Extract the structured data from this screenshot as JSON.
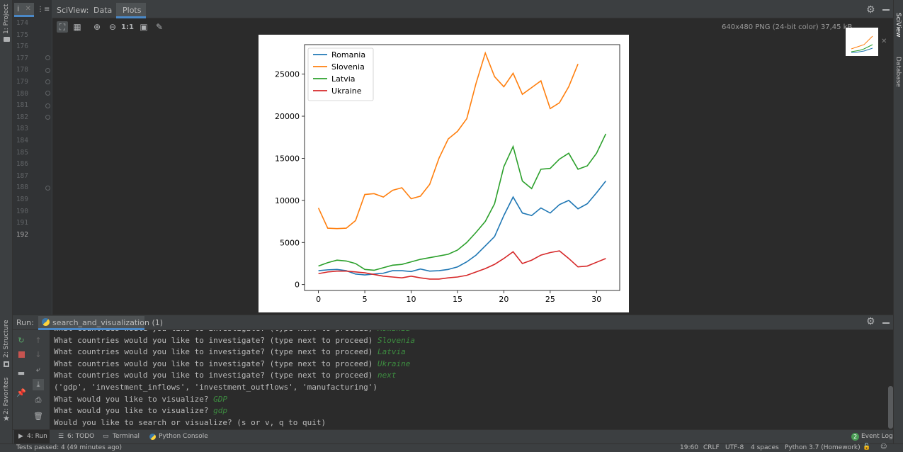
{
  "left_strip": {
    "project_label": "1: Project",
    "structure_label": "2: Structure",
    "favorites_label": "2: Favorites"
  },
  "right_strip": {
    "sciview_label": "SciView",
    "database_label": "Database"
  },
  "editor_tab": {
    "label": "i"
  },
  "sciview_tabs": {
    "title": "SciView:",
    "items": [
      "Data",
      "Plots"
    ],
    "active": "Plots"
  },
  "image_info": "640x480 PNG (24-bit color) 37,45 kB",
  "gutter": {
    "lines": [
      "174",
      "175",
      "176",
      "177",
      "178",
      "179",
      "180",
      "181",
      "182",
      "183",
      "184",
      "185",
      "186",
      "187",
      "188",
      "189",
      "190",
      "191",
      "192"
    ]
  },
  "run_panel": {
    "label": "Run:",
    "tab_label": "search_and_visualization (1)",
    "lines": [
      {
        "prompt": "What countries would you like to investigate? (type next to proceed) ",
        "input": "Romania"
      },
      {
        "prompt": "What countries would you like to investigate? (type next to proceed) ",
        "input": "Slovenia"
      },
      {
        "prompt": "What countries would you like to investigate? (type next to proceed) ",
        "input": "Latvia"
      },
      {
        "prompt": "What countries would you like to investigate? (type next to proceed) ",
        "input": "Ukraine"
      },
      {
        "prompt": "What countries would you like to investigate? (type next to proceed) ",
        "input": "next"
      },
      {
        "prompt": "('gdp', 'investment_inflows', 'investment_outflows', 'manufacturing')",
        "input": ""
      },
      {
        "prompt": "What would you like to visualize? ",
        "input": "GDP"
      },
      {
        "prompt": "What would you like to visualize? ",
        "input": "gdp"
      },
      {
        "prompt": "Would you like to search or visualize? (s or v, q to quit)",
        "input": ""
      }
    ]
  },
  "bottom_tabs": {
    "run": "4: Run",
    "todo": "6: TODO",
    "terminal": "Terminal",
    "python_console": "Python Console",
    "event_log": "Event Log",
    "event_count": "2"
  },
  "status_bar": {
    "left": "Tests passed: 4 (49 minutes ago)",
    "position": "19:60",
    "line_sep": "CRLF",
    "encoding": "UTF-8",
    "indent": "4 spaces",
    "interpreter": "Python 3.7 (Homework)"
  },
  "colors": {
    "romania": "#1f77b4",
    "slovenia": "#ff7f0e",
    "latvia": "#2ca02c",
    "ukraine": "#d62728"
  },
  "chart_data": {
    "type": "line",
    "title": "",
    "xlabel": "",
    "ylabel": "",
    "xlim": [
      -1.5,
      32.5
    ],
    "ylim": [
      -700,
      28500
    ],
    "xticks": [
      0,
      5,
      10,
      15,
      20,
      25,
      30
    ],
    "yticks": [
      0,
      5000,
      10000,
      15000,
      20000,
      25000
    ],
    "grid": false,
    "legend": "top-left",
    "series": [
      {
        "name": "Romania",
        "color": "#1f77b4",
        "x": [
          0,
          1,
          2,
          3,
          4,
          5,
          6,
          7,
          8,
          9,
          10,
          11,
          12,
          13,
          14,
          15,
          16,
          17,
          18,
          19,
          20,
          21,
          22,
          23,
          24,
          25,
          26,
          27,
          28,
          29,
          30,
          31
        ],
        "y": [
          1650,
          1750,
          1800,
          1650,
          1250,
          1150,
          1250,
          1350,
          1650,
          1650,
          1550,
          1850,
          1600,
          1650,
          1800,
          2100,
          2700,
          3500,
          4600,
          5700,
          8200,
          10400,
          8500,
          8200,
          9100,
          8500,
          9500,
          10000,
          9000,
          9600,
          10900,
          12300
        ]
      },
      {
        "name": "Slovenia",
        "color": "#ff7f0e",
        "x": [
          0,
          1,
          2,
          3,
          4,
          5,
          6,
          7,
          8,
          9,
          10,
          11,
          12,
          13,
          14,
          15,
          16,
          17,
          18,
          19,
          20,
          21,
          22,
          23,
          24,
          25,
          26,
          27,
          28
        ],
        "y": [
          9100,
          6700,
          6650,
          6700,
          7600,
          10700,
          10800,
          10400,
          11200,
          11500,
          10200,
          10500,
          11900,
          15000,
          17300,
          18200,
          19700,
          23900,
          27500,
          24700,
          23500,
          25100,
          22600,
          23400,
          24200,
          20900,
          21600,
          23500,
          26200
        ]
      },
      {
        "name": "Latvia",
        "color": "#2ca02c",
        "x": [
          0,
          1,
          2,
          3,
          4,
          5,
          6,
          7,
          8,
          9,
          10,
          11,
          12,
          13,
          14,
          15,
          16,
          17,
          18,
          19,
          20,
          21,
          22,
          23,
          24,
          25,
          26,
          27,
          28,
          29,
          30,
          31
        ],
        "y": [
          2200,
          2600,
          2900,
          2800,
          2500,
          1800,
          1700,
          2000,
          2300,
          2400,
          2700,
          3000,
          3200,
          3400,
          3600,
          4100,
          5000,
          6200,
          7500,
          9600,
          14000,
          16400,
          12300,
          11400,
          13700,
          13800,
          14900,
          15600,
          13700,
          14100,
          15600,
          17900
        ]
      },
      {
        "name": "Ukraine",
        "color": "#d62728",
        "x": [
          0,
          1,
          2,
          3,
          4,
          5,
          6,
          7,
          8,
          9,
          10,
          11,
          12,
          13,
          14,
          15,
          16,
          17,
          18,
          19,
          20,
          21,
          22,
          23,
          24,
          25,
          26,
          27,
          28,
          29,
          30,
          31
        ],
        "y": [
          1300,
          1500,
          1600,
          1600,
          1500,
          1400,
          1200,
          1000,
          900,
          800,
          1000,
          800,
          650,
          650,
          800,
          900,
          1100,
          1500,
          1900,
          2400,
          3100,
          3900,
          2500,
          2900,
          3500,
          3800,
          4000,
          3100,
          2100,
          2200,
          2650,
          3100
        ]
      }
    ]
  }
}
